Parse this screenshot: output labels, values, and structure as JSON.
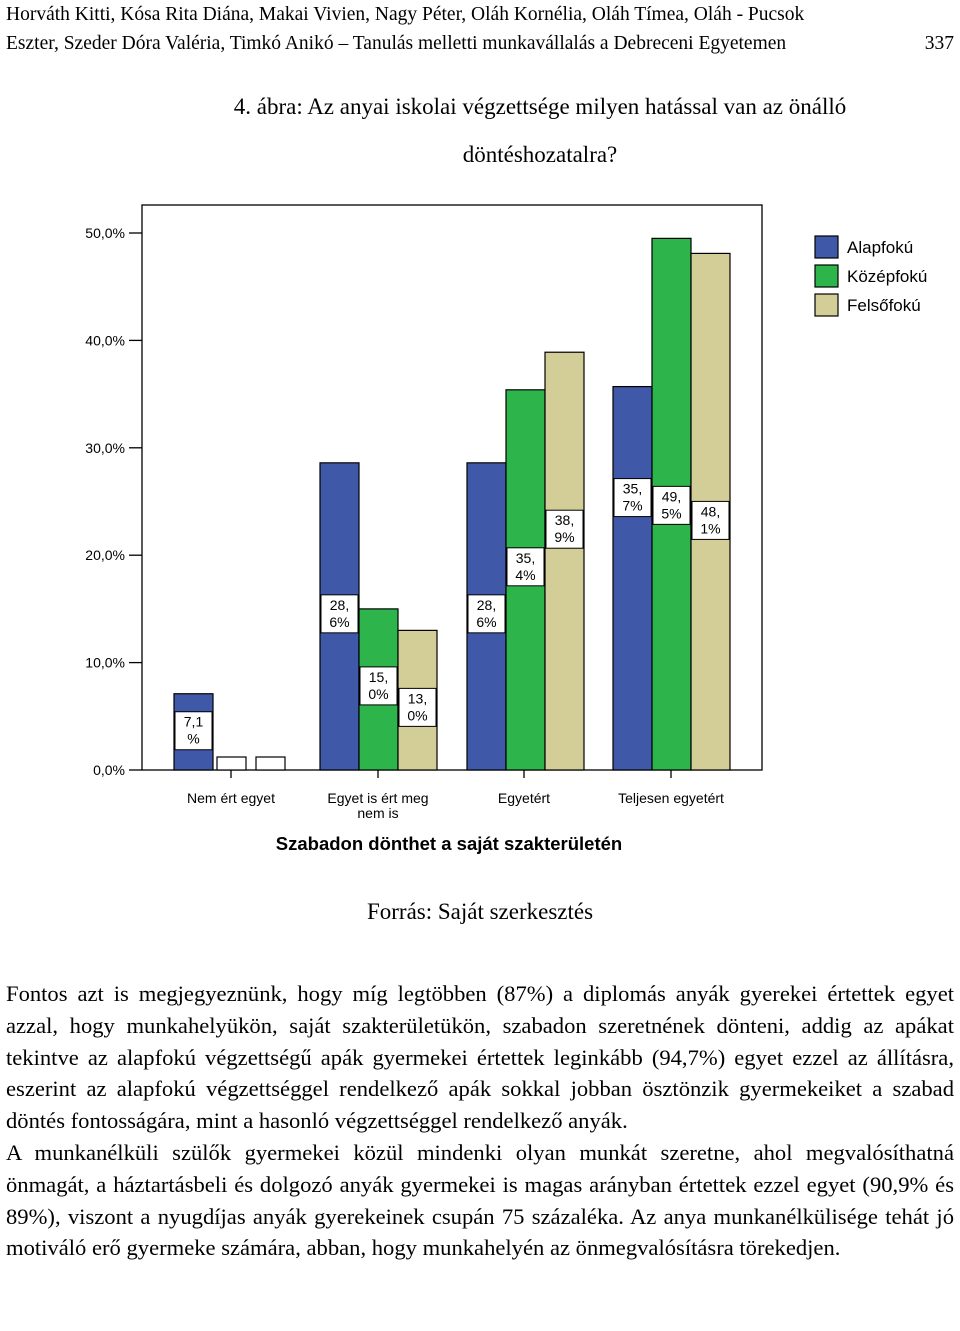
{
  "header": {
    "line1": "Horváth Kitti, Kósa Rita Diána, Makai Vivien, Nagy Péter, Oláh Kornélia, Oláh Tímea, Oláh - Pucsok",
    "line2_text": "Eszter, Szeder Dóra Valéria, Timkó Anikó – Tanulás melletti munkavállalás a Debreceni Egyetemen",
    "page_number": "337"
  },
  "figure": {
    "caption_line1": "4.  ábra: Az anyai iskolai végzettsége milyen hatással van az önálló",
    "caption_line2": "döntéshozatalra?",
    "source": "Forrás: Saját szerkesztés"
  },
  "chart_data": {
    "type": "bar",
    "xlabel": "Szabadon dönthet a saját szakterületén",
    "categories": [
      "Nem ért egyet",
      "Egyet is ért meg nem is",
      "Egyetért",
      "Teljesen egyetért"
    ],
    "category_labels": [
      [
        "Nem ért egyet"
      ],
      [
        "Egyet is ért meg",
        "nem is"
      ],
      [
        "Egyetért"
      ],
      [
        "Teljesen egyetért"
      ]
    ],
    "ylim": [
      0,
      50
    ],
    "yticks": [
      "0,0%",
      "10,0%",
      "20,0%",
      "30,0%",
      "40,0%",
      "50,0%"
    ],
    "legend_position": "top-right",
    "series": [
      {
        "name": "Alapfokú",
        "color": "#3f58a7",
        "values": [
          7.1,
          28.6,
          28.6,
          35.7
        ],
        "labels": [
          [
            "7,1",
            "%"
          ],
          [
            "28,",
            "6%"
          ],
          [
            "28,",
            "6%"
          ],
          [
            "35,",
            "7%"
          ]
        ]
      },
      {
        "name": "Középfokú",
        "color": "#2db44a",
        "values": [
          0,
          15.0,
          35.4,
          49.5
        ],
        "labels": [
          null,
          [
            "15,",
            "0%"
          ],
          [
            "35,",
            "4%"
          ],
          [
            "49,",
            "5%"
          ]
        ]
      },
      {
        "name": "Felsőfokú",
        "color": "#d3cd97",
        "values": [
          0,
          13.0,
          38.9,
          48.1
        ],
        "labels": [
          null,
          [
            "13,",
            "0%"
          ],
          [
            "38,",
            "9%"
          ],
          [
            "48,",
            "1%"
          ]
        ]
      }
    ]
  },
  "paragraphs": [
    "Fontos azt is megjegyeznünk, hogy míg legtöbben (87%) a diplomás anyák gyerekei értettek egyet azzal, hogy munkahelyükön, saját szakterületükön, szabadon szeretnének dönteni, addig az apákat tekintve az alapfokú végzettségű apák gyermekei értettek leginkább (94,7%) egyet ezzel az állításra, eszerint az alapfokú végzettséggel rendelkező apák sokkal jobban ösztönzik gyermekeiket a szabad döntés fontosságára, mint a hasonló végzettséggel rendelkező anyák.",
    "A munkanélküli szülők gyermekei közül mindenki olyan munkát szeretne, ahol megvalósíthatná önmagát, a háztartásbeli és dolgozó anyák gyermekei is magas arányban értettek ezzel egyet (90,9% és 89%), viszont a nyugdíjas anyák gyerekeinek csupán 75 százaléka. Az anya munkanélkülisége tehát jó motiváló erő gyermeke számára, abban, hogy munkahelyén az önmegvalósításra törekedjen."
  ]
}
